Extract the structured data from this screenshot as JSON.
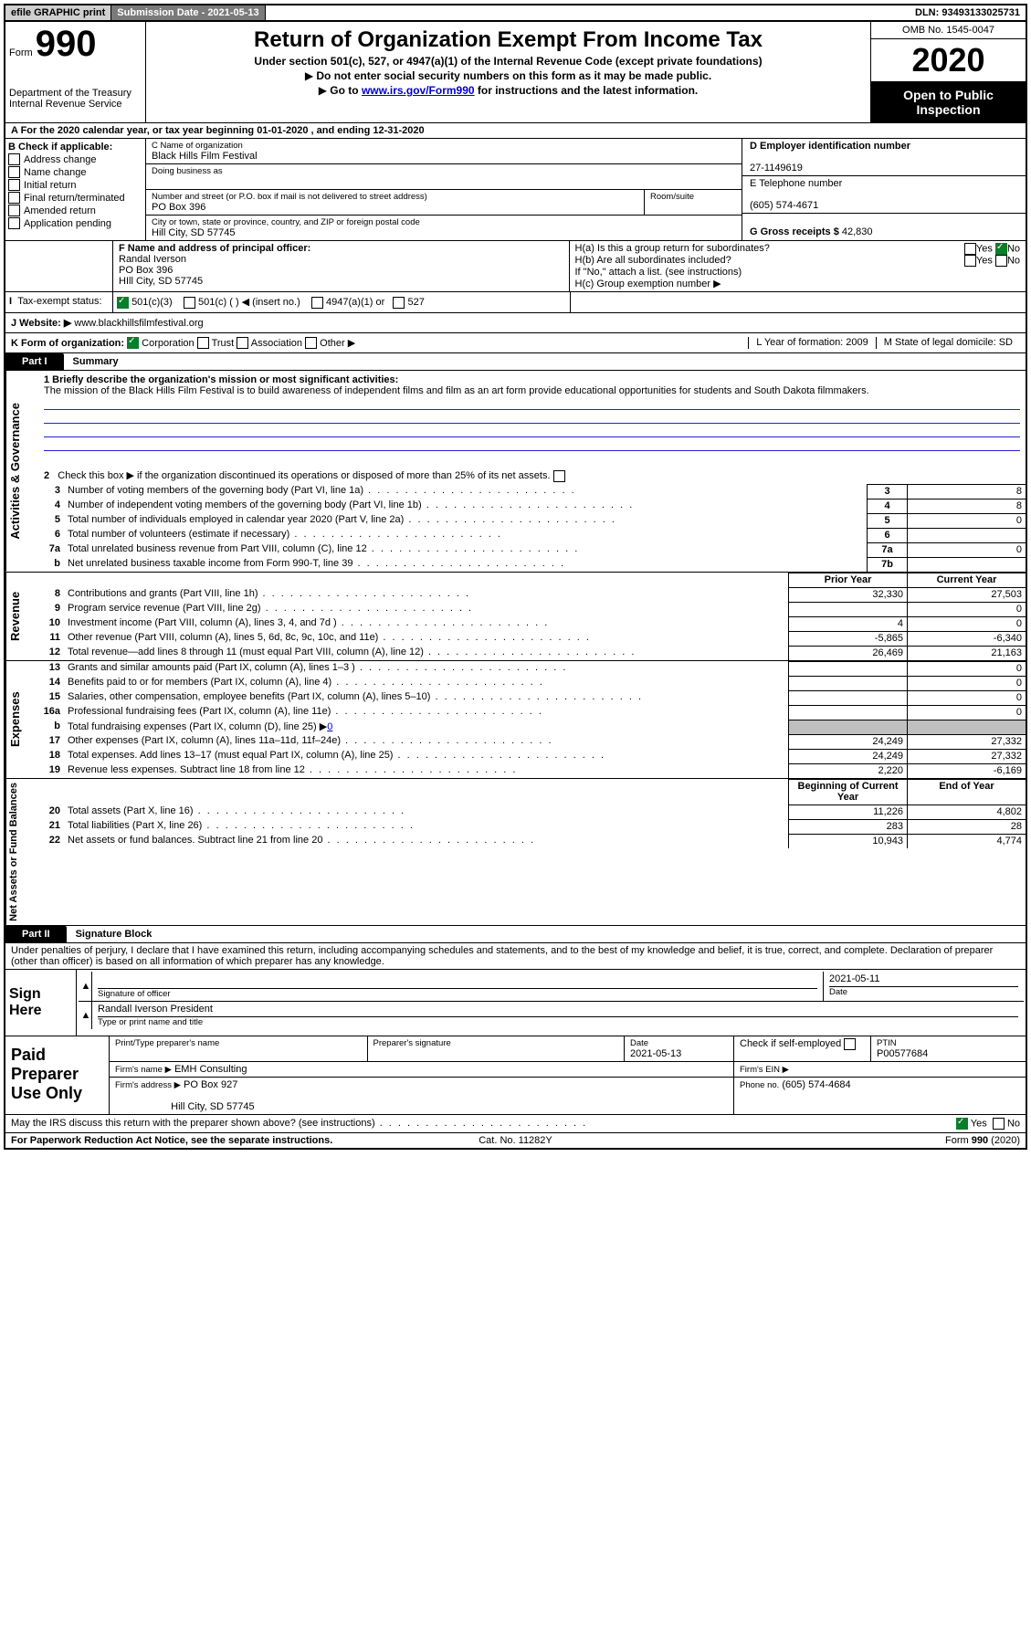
{
  "topbar": {
    "efile": "efile GRAPHIC print",
    "submission": "Submission Date - 2021-05-13",
    "dln": "DLN: 93493133025731"
  },
  "header": {
    "form_label": "Form",
    "form_number": "990",
    "dept1": "Department of the Treasury",
    "dept2": "Internal Revenue Service",
    "title": "Return of Organization Exempt From Income Tax",
    "subtitle": "Under section 501(c), 527, or 4947(a)(1) of the Internal Revenue Code (except private foundations)",
    "note1": "Do not enter social security numbers on this form as it may be made public.",
    "note2_pre": "Go to ",
    "note2_link": "www.irs.gov/Form990",
    "note2_post": " for instructions and the latest information.",
    "omb": "OMB No. 1545-0047",
    "year": "2020",
    "open1": "Open to Public",
    "open2": "Inspection"
  },
  "rowA": "A For the 2020 calendar year, or tax year beginning 01-01-2020     , and ending 12-31-2020",
  "B": {
    "header": "B Check if applicable:",
    "items": [
      "Address change",
      "Name change",
      "Initial return",
      "Final return/terminated",
      "Amended return",
      "Application pending"
    ]
  },
  "C": {
    "name_label": "C Name of organization",
    "name": "Black Hills Film Festival",
    "dba_label": "Doing business as",
    "addr_label": "Number and street (or P.O. box if mail is not delivered to street address)",
    "room_label": "Room/suite",
    "addr": "PO Box 396",
    "city_label": "City or town, state or province, country, and ZIP or foreign postal code",
    "city": "Hill City, SD  57745"
  },
  "D": {
    "label": "D Employer identification number",
    "value": "27-1149619"
  },
  "E": {
    "label": "E Telephone number",
    "value": "(605) 574-4671"
  },
  "G": {
    "label": "G Gross receipts $",
    "value": "42,830"
  },
  "F": {
    "label": "F  Name and address of principal officer:",
    "name": "Randal Iverson",
    "addr": "PO Box 396",
    "city": "HIll City, SD  57745"
  },
  "H": {
    "a": "H(a)  Is this a group return for subordinates?",
    "b": "H(b)  Are all subordinates included?",
    "b_note": "If \"No,\" attach a list. (see instructions)",
    "c": "H(c)  Group exemption number ▶",
    "yes": "Yes",
    "no": "No"
  },
  "I": {
    "label": "Tax-exempt status:",
    "c3": "501(c)(3)",
    "c": "501(c) (   ) ◀ (insert no.)",
    "a1": "4947(a)(1) or",
    "s527": "527"
  },
  "J": {
    "label": "J    Website: ▶",
    "value": "www.blackhillsfilmfestival.org"
  },
  "K": {
    "label": "K Form of organization:",
    "opts": [
      "Corporation",
      "Trust",
      "Association",
      "Other ▶"
    ],
    "L": "L Year of formation: 2009",
    "M": "M State of legal domicile: SD"
  },
  "part1": {
    "tab": "Part I",
    "title": "Summary"
  },
  "activities_label": "Activities & Governance",
  "mission_label": "1   Briefly describe the organization's mission or most significant activities:",
  "mission": "The mission of the Black Hills Film Festival is to build awareness of independent films and film as an art form provide educational opportunities for students and South Dakota filmmakers.",
  "line2": "Check this box ▶       if the organization discontinued its operations or disposed of more than 25% of its net assets.",
  "lines_gov": [
    {
      "n": "3",
      "t": "Number of voting members of the governing body (Part VI, line 1a)",
      "box": "3",
      "val": "8"
    },
    {
      "n": "4",
      "t": "Number of independent voting members of the governing body (Part VI, line 1b)",
      "box": "4",
      "val": "8"
    },
    {
      "n": "5",
      "t": "Total number of individuals employed in calendar year 2020 (Part V, line 2a)",
      "box": "5",
      "val": "0"
    },
    {
      "n": "6",
      "t": "Total number of volunteers (estimate if necessary)",
      "box": "6",
      "val": ""
    },
    {
      "n": "7a",
      "t": "Total unrelated business revenue from Part VIII, column (C), line 12",
      "box": "7a",
      "val": "0"
    },
    {
      "n": "b",
      "t": "Net unrelated business taxable income from Form 990-T, line 39",
      "box": "7b",
      "val": ""
    }
  ],
  "revenue_label": "Revenue",
  "prior": "Prior Year",
  "current": "Current Year",
  "lines_rev": [
    {
      "n": "8",
      "t": "Contributions and grants (Part VIII, line 1h)",
      "p": "32,330",
      "c": "27,503"
    },
    {
      "n": "9",
      "t": "Program service revenue (Part VIII, line 2g)",
      "p": "",
      "c": "0"
    },
    {
      "n": "10",
      "t": "Investment income (Part VIII, column (A), lines 3, 4, and 7d )",
      "p": "4",
      "c": "0"
    },
    {
      "n": "11",
      "t": "Other revenue (Part VIII, column (A), lines 5, 6d, 8c, 9c, 10c, and 11e)",
      "p": "-5,865",
      "c": "-6,340"
    },
    {
      "n": "12",
      "t": "Total revenue—add lines 8 through 11 (must equal Part VIII, column (A), line 12)",
      "p": "26,469",
      "c": "21,163"
    }
  ],
  "expenses_label": "Expenses",
  "lines_exp": [
    {
      "n": "13",
      "t": "Grants and similar amounts paid (Part IX, column (A), lines 1–3 )",
      "p": "",
      "c": "0"
    },
    {
      "n": "14",
      "t": "Benefits paid to or for members (Part IX, column (A), line 4)",
      "p": "",
      "c": "0"
    },
    {
      "n": "15",
      "t": "Salaries, other compensation, employee benefits (Part IX, column (A), lines 5–10)",
      "p": "",
      "c": "0"
    },
    {
      "n": "16a",
      "t": "Professional fundraising fees (Part IX, column (A), line 11e)",
      "p": "",
      "c": "0"
    }
  ],
  "line16b_pre": "Total fundraising expenses (Part IX, column (D), line 25) ▶",
  "line16b_val": "0",
  "lines_exp2": [
    {
      "n": "17",
      "t": "Other expenses (Part IX, column (A), lines 11a–11d, 11f–24e)",
      "p": "24,249",
      "c": "27,332"
    },
    {
      "n": "18",
      "t": "Total expenses. Add lines 13–17 (must equal Part IX, column (A), line 25)",
      "p": "24,249",
      "c": "27,332"
    },
    {
      "n": "19",
      "t": "Revenue less expenses. Subtract line 18 from line 12",
      "p": "2,220",
      "c": "-6,169"
    }
  ],
  "netassets_label": "Net Assets or Fund Balances",
  "boy": "Beginning of Current Year",
  "eoy": "End of Year",
  "lines_na": [
    {
      "n": "20",
      "t": "Total assets (Part X, line 16)",
      "p": "11,226",
      "c": "4,802"
    },
    {
      "n": "21",
      "t": "Total liabilities (Part X, line 26)",
      "p": "283",
      "c": "28"
    },
    {
      "n": "22",
      "t": "Net assets or fund balances. Subtract line 21 from line 20",
      "p": "10,943",
      "c": "4,774"
    }
  ],
  "part2": {
    "tab": "Part II",
    "title": "Signature Block"
  },
  "perjury": "Under penalties of perjury, I declare that I have examined this return, including accompanying schedules and statements, and to the best of my knowledge and belief, it is true, correct, and complete. Declaration of preparer (other than officer) is based on all information of which preparer has any knowledge.",
  "sign": {
    "here": "Sign Here",
    "sig_officer": "Signature of officer",
    "date_label": "Date",
    "date": "2021-05-11",
    "name": "Randall Iverson President",
    "name_label": "Type or print name and title"
  },
  "paid": {
    "label": "Paid Preparer Use Only",
    "col_name": "Print/Type preparer's name",
    "col_sig": "Preparer's signature",
    "col_date": "Date",
    "date": "2021-05-13",
    "check": "Check        if self-employed",
    "ptin_label": "PTIN",
    "ptin": "P00577684",
    "firm_name_label": "Firm's name    ▶",
    "firm_name": "EMH Consulting",
    "firm_ein": "Firm's EIN ▶",
    "firm_addr_label": "Firm's address ▶",
    "firm_addr": "PO Box 927",
    "firm_city": "Hill City, SD  57745",
    "phone_label": "Phone no.",
    "phone": "(605) 574-4684"
  },
  "discuss": "May the IRS discuss this return with the preparer shown above? (see instructions)",
  "footer": {
    "pra": "For Paperwork Reduction Act Notice, see the separate instructions.",
    "cat": "Cat. No. 11282Y",
    "form": "Form 990 (2020)"
  },
  "colors": {
    "link": "#0000cc",
    "shade": "#bfbfbf",
    "green": "#0b7d2b"
  }
}
